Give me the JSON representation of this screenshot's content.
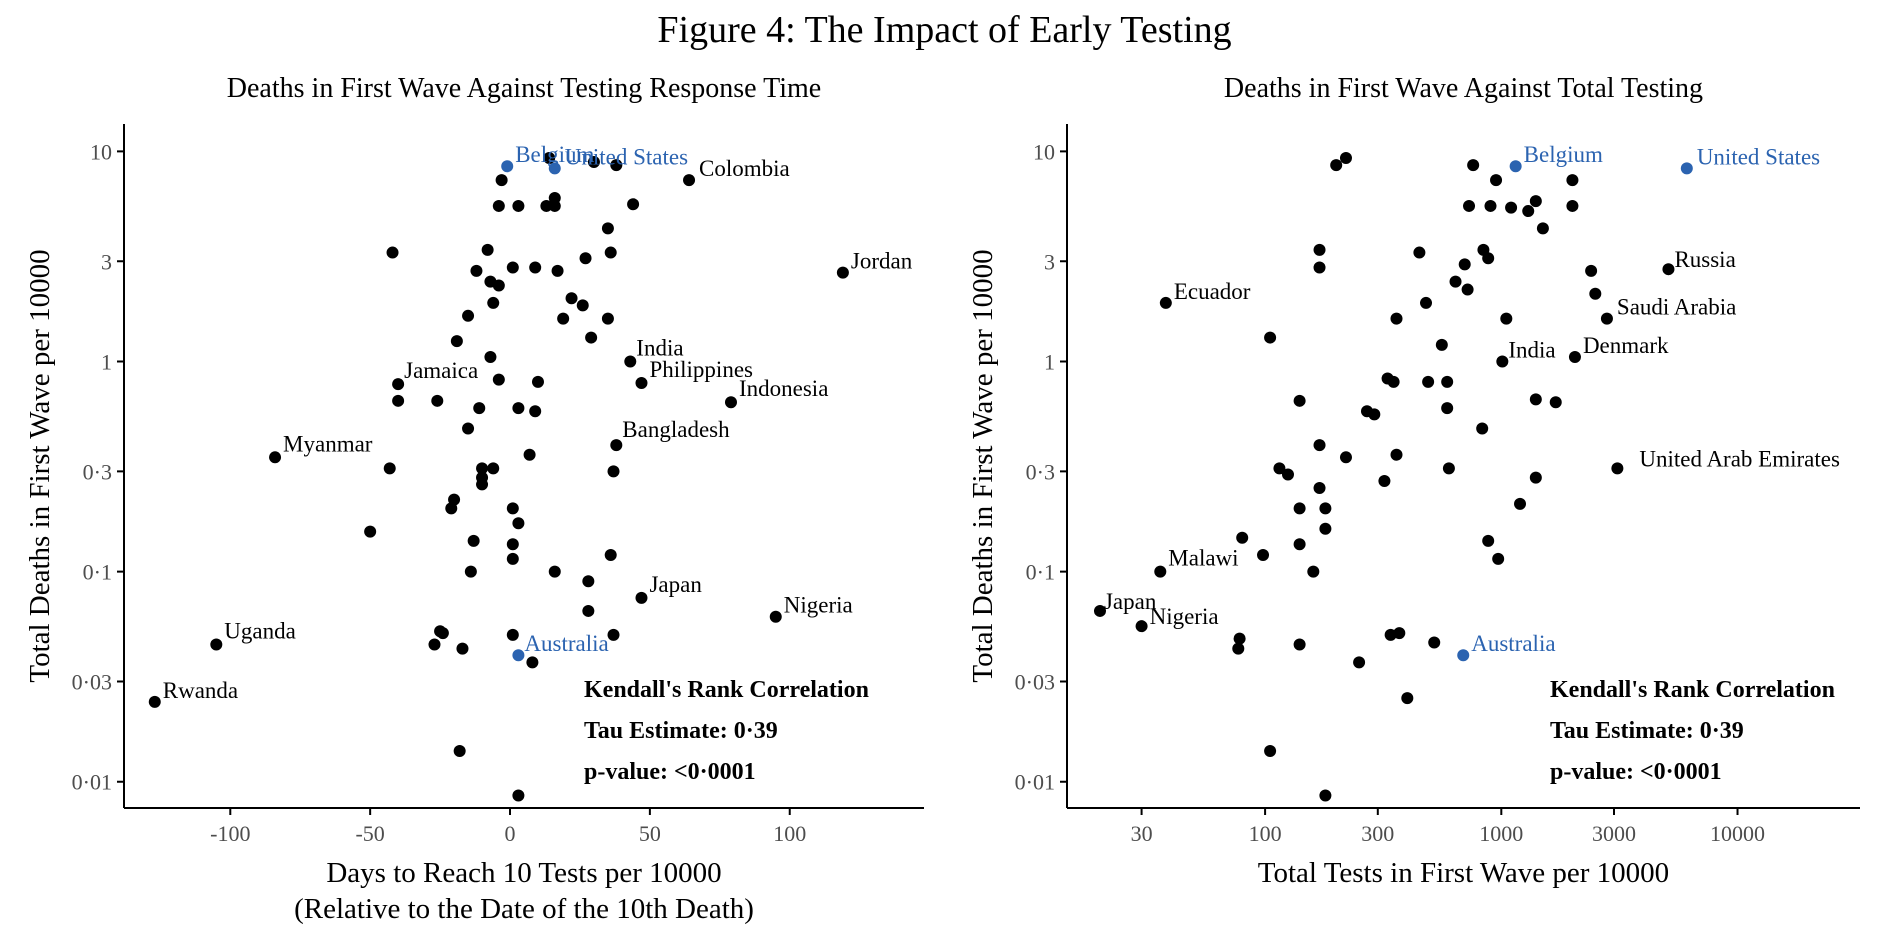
{
  "figure_title": "Figure 4: The Impact of Early Testing",
  "colors": {
    "default_point": "#000000",
    "highlight": "#2b63b0",
    "axis": "#000000",
    "tick_text": "#4d4d4d"
  },
  "chart_data": [
    {
      "type": "scatter",
      "title": "Deaths in First Wave Against Testing Response Time",
      "xlabel": "Days to Reach 10 Tests per 10000",
      "xlabel2": "(Relative to the Date of the 10th Death)",
      "ylabel": "Total Deaths in First Wave per 10000",
      "xscale": "linear",
      "yscale": "log",
      "xlim": [
        -138,
        148
      ],
      "ylim": [
        0.0075,
        13.5
      ],
      "xticks": [
        {
          "v": -100,
          "label": "-100"
        },
        {
          "v": -50,
          "label": "-50"
        },
        {
          "v": 0,
          "label": "0"
        },
        {
          "v": 50,
          "label": "50"
        },
        {
          "v": 100,
          "label": "100"
        }
      ],
      "yticks": [
        {
          "v": 0.01,
          "label": "0·01"
        },
        {
          "v": 0.03,
          "label": "0·03"
        },
        {
          "v": 0.1,
          "label": "0·1"
        },
        {
          "v": 0.3,
          "label": "0·3"
        },
        {
          "v": 1,
          "label": "1"
        },
        {
          "v": 3,
          "label": "3"
        },
        {
          "v": 10,
          "label": "10"
        }
      ],
      "grid": false,
      "stats": [
        "Kendall's Rank Correlation",
        "Tau Estimate: 0·39",
        "p-value: <0·0001"
      ],
      "labeled_points": [
        {
          "label": "Belgium",
          "x": -1,
          "y": 8.5,
          "highlight": true
        },
        {
          "label": "United States",
          "x": 16,
          "y": 8.3,
          "highlight": true
        },
        {
          "label": "Colombia",
          "x": 64,
          "y": 7.3,
          "highlight": false
        },
        {
          "label": "Jordan",
          "x": 119,
          "y": 2.65,
          "highlight": false
        },
        {
          "label": "India",
          "x": 43,
          "y": 1.0,
          "highlight": false
        },
        {
          "label": "Philippines",
          "x": 47,
          "y": 0.79,
          "highlight": false
        },
        {
          "label": "Indonesia",
          "x": 79,
          "y": 0.64,
          "highlight": false
        },
        {
          "label": "Jamaica",
          "x": -40,
          "y": 0.78,
          "highlight": false
        },
        {
          "label": "Bangladesh",
          "x": 38,
          "y": 0.4,
          "highlight": false
        },
        {
          "label": "Myanmar",
          "x": -84,
          "y": 0.35,
          "highlight": false
        },
        {
          "label": "Japan",
          "x": 47,
          "y": 0.075,
          "highlight": false
        },
        {
          "label": "Nigeria",
          "x": 95,
          "y": 0.061,
          "highlight": false
        },
        {
          "label": "Uganda",
          "x": -105,
          "y": 0.045,
          "highlight": false
        },
        {
          "label": "Australia",
          "x": 3,
          "y": 0.04,
          "highlight": true
        },
        {
          "label": "Rwanda",
          "x": -127,
          "y": 0.024,
          "highlight": false
        }
      ],
      "points": [
        [
          14,
          9.3
        ],
        [
          30,
          8.9
        ],
        [
          38,
          8.6
        ],
        [
          -3,
          7.3
        ],
        [
          -4,
          5.5
        ],
        [
          3,
          5.5
        ],
        [
          13,
          5.5
        ],
        [
          16,
          5.5
        ],
        [
          16,
          6.0
        ],
        [
          44,
          5.6
        ],
        [
          35,
          4.3
        ],
        [
          36,
          3.3
        ],
        [
          -42,
          3.3
        ],
        [
          -8,
          3.4
        ],
        [
          -12,
          2.7
        ],
        [
          1,
          2.8
        ],
        [
          9,
          2.8
        ],
        [
          17,
          2.7
        ],
        [
          27,
          3.1
        ],
        [
          -7,
          2.4
        ],
        [
          -4,
          2.3
        ],
        [
          22,
          2.0
        ],
        [
          26,
          1.85
        ],
        [
          -6,
          1.9
        ],
        [
          -15,
          1.65
        ],
        [
          19,
          1.6
        ],
        [
          35,
          1.6
        ],
        [
          -19,
          1.25
        ],
        [
          29,
          1.3
        ],
        [
          -7,
          1.05
        ],
        [
          -4,
          0.82
        ],
        [
          -40,
          0.65
        ],
        [
          10,
          0.8
        ],
        [
          -26,
          0.65
        ],
        [
          -11,
          0.6
        ],
        [
          3,
          0.6
        ],
        [
          9,
          0.58
        ],
        [
          -15,
          0.48
        ],
        [
          7,
          0.36
        ],
        [
          37,
          0.3
        ],
        [
          -43,
          0.31
        ],
        [
          -10,
          0.31
        ],
        [
          -6,
          0.31
        ],
        [
          -10,
          0.28
        ],
        [
          -10,
          0.26
        ],
        [
          -20,
          0.22
        ],
        [
          -21,
          0.2
        ],
        [
          1,
          0.2
        ],
        [
          3,
          0.17
        ],
        [
          -50,
          0.155
        ],
        [
          -13,
          0.14
        ],
        [
          1,
          0.135
        ],
        [
          36,
          0.12
        ],
        [
          1,
          0.115
        ],
        [
          -14,
          0.1
        ],
        [
          16,
          0.1
        ],
        [
          28,
          0.09
        ],
        [
          28,
          0.065
        ],
        [
          37,
          0.05
        ],
        [
          1,
          0.05
        ],
        [
          -25,
          0.052
        ],
        [
          -24,
          0.051
        ],
        [
          -27,
          0.045
        ],
        [
          -17,
          0.043
        ],
        [
          8,
          0.037
        ],
        [
          -18,
          0.014
        ],
        [
          3,
          0.0086
        ]
      ]
    },
    {
      "type": "scatter",
      "title": "Deaths in First Wave Against Total Testing",
      "xlabel": "Total Tests in First Wave per 10000",
      "ylabel": "Total Deaths in First Wave per 10000",
      "xscale": "log",
      "yscale": "log",
      "xlim": [
        14.5,
        33000
      ],
      "ylim": [
        0.0075,
        13.5
      ],
      "xticks": [
        {
          "v": 30,
          "label": "30"
        },
        {
          "v": 100,
          "label": "100"
        },
        {
          "v": 300,
          "label": "300"
        },
        {
          "v": 1000,
          "label": "1000"
        },
        {
          "v": 3000,
          "label": "3000"
        },
        {
          "v": 10000,
          "label": "10000"
        }
      ],
      "yticks": [
        {
          "v": 0.01,
          "label": "0·01"
        },
        {
          "v": 0.03,
          "label": "0·03"
        },
        {
          "v": 0.1,
          "label": "0·1"
        },
        {
          "v": 0.3,
          "label": "0·3"
        },
        {
          "v": 1,
          "label": "1"
        },
        {
          "v": 3,
          "label": "3"
        },
        {
          "v": 10,
          "label": "10"
        }
      ],
      "grid": false,
      "stats": [
        "Kendall's Rank Correlation",
        "Tau Estimate: 0·39",
        "p-value: <0·0001"
      ],
      "labeled_points": [
        {
          "label": "Belgium",
          "x": 1150,
          "y": 8.5,
          "highlight": true
        },
        {
          "label": "United States",
          "x": 6100,
          "y": 8.3,
          "highlight": true
        },
        {
          "label": "Russia",
          "x": 5100,
          "y": 2.75,
          "highlight": false
        },
        {
          "label": "Ecuador",
          "x": 38,
          "y": 1.9,
          "highlight": false
        },
        {
          "label": "Saudi Arabia",
          "x": 2800,
          "y": 1.6,
          "highlight": false
        },
        {
          "label": "India",
          "x": 1010,
          "y": 1.0,
          "highlight": false
        },
        {
          "label": "Denmark",
          "x": 2050,
          "y": 1.05,
          "highlight": false
        },
        {
          "label": "United Arab Emirates",
          "x": 3100,
          "y": 0.31,
          "highlight": false
        },
        {
          "label": "Malawi",
          "x": 36,
          "y": 0.1,
          "highlight": false
        },
        {
          "label": "Japan",
          "x": 20,
          "y": 0.065,
          "highlight": false
        },
        {
          "label": "Nigeria",
          "x": 30,
          "y": 0.055,
          "highlight": false
        },
        {
          "label": "Australia",
          "x": 690,
          "y": 0.04,
          "highlight": true
        }
      ],
      "points": [
        [
          220,
          9.3
        ],
        [
          200,
          8.6
        ],
        [
          760,
          8.6
        ],
        [
          950,
          7.3
        ],
        [
          2000,
          7.3
        ],
        [
          730,
          5.5
        ],
        [
          900,
          5.5
        ],
        [
          1100,
          5.4
        ],
        [
          1400,
          5.8
        ],
        [
          1300,
          5.2
        ],
        [
          2000,
          5.5
        ],
        [
          1500,
          4.3
        ],
        [
          170,
          3.4
        ],
        [
          170,
          2.8
        ],
        [
          450,
          3.3
        ],
        [
          840,
          3.4
        ],
        [
          880,
          3.1
        ],
        [
          700,
          2.9
        ],
        [
          640,
          2.4
        ],
        [
          720,
          2.2
        ],
        [
          2400,
          2.7
        ],
        [
          2500,
          2.1
        ],
        [
          480,
          1.9
        ],
        [
          360,
          1.6
        ],
        [
          1050,
          1.6
        ],
        [
          105,
          1.3
        ],
        [
          560,
          1.2
        ],
        [
          330,
          0.83
        ],
        [
          490,
          0.8
        ],
        [
          590,
          0.8
        ],
        [
          350,
          0.8
        ],
        [
          140,
          0.65
        ],
        [
          1400,
          0.66
        ],
        [
          1700,
          0.64
        ],
        [
          270,
          0.58
        ],
        [
          290,
          0.56
        ],
        [
          590,
          0.6
        ],
        [
          830,
          0.48
        ],
        [
          170,
          0.4
        ],
        [
          360,
          0.36
        ],
        [
          220,
          0.35
        ],
        [
          115,
          0.31
        ],
        [
          125,
          0.29
        ],
        [
          600,
          0.31
        ],
        [
          320,
          0.27
        ],
        [
          1400,
          0.28
        ],
        [
          170,
          0.25
        ],
        [
          140,
          0.2
        ],
        [
          180,
          0.2
        ],
        [
          1200,
          0.21
        ],
        [
          180,
          0.16
        ],
        [
          80,
          0.145
        ],
        [
          140,
          0.135
        ],
        [
          880,
          0.14
        ],
        [
          98,
          0.12
        ],
        [
          970,
          0.115
        ],
        [
          160,
          0.1
        ],
        [
          340,
          0.05
        ],
        [
          370,
          0.051
        ],
        [
          520,
          0.046
        ],
        [
          78,
          0.048
        ],
        [
          140,
          0.045
        ],
        [
          77,
          0.043
        ],
        [
          250,
          0.037
        ],
        [
          400,
          0.025
        ],
        [
          105,
          0.014
        ],
        [
          180,
          0.0086
        ]
      ]
    }
  ]
}
